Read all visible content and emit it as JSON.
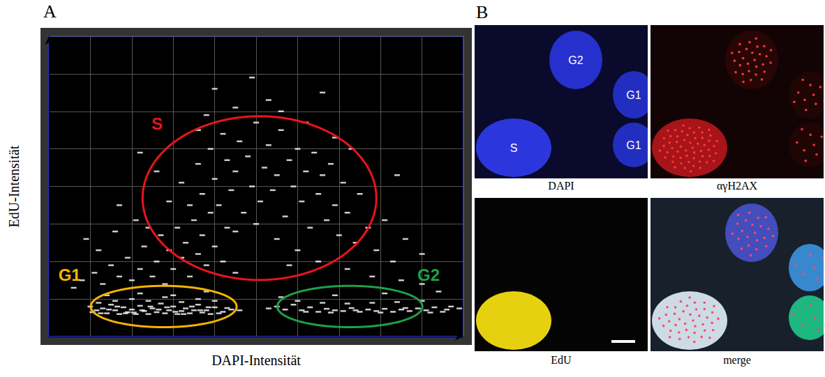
{
  "chart_data": {
    "type": "scatter",
    "x_label": "DAPI-Intensität",
    "y_label": "EdU-Intensität",
    "xlim": [
      0,
      10
    ],
    "ylim": [
      0,
      8
    ],
    "xticks": [
      0,
      1,
      2,
      3,
      4,
      5,
      6,
      7,
      8,
      9,
      10
    ],
    "yticks": [
      0,
      1,
      2,
      3,
      4,
      5,
      6,
      7,
      8
    ],
    "grid": true,
    "tick_labels": false,
    "color": "#ffffff",
    "marker": "dash",
    "x": [
      1.0,
      1.15,
      1.3,
      1.4,
      1.5,
      1.6,
      1.7,
      1.8,
      1.9,
      2.0,
      2.1,
      2.2,
      2.3,
      2.4,
      2.5,
      2.6,
      2.7,
      2.8,
      2.9,
      3.0,
      3.1,
      3.2,
      3.3,
      3.4,
      3.5,
      3.6,
      3.7,
      3.8,
      3.9,
      4.0,
      4.2,
      4.4,
      4.6,
      1.2,
      1.6,
      2.0,
      2.4,
      2.8,
      3.2,
      3.6,
      4.0,
      1.4,
      2.2,
      3.0,
      3.8,
      1.05,
      1.25,
      1.45,
      1.65,
      1.85,
      2.05,
      2.25,
      2.45,
      2.65,
      2.85,
      3.05,
      3.25,
      3.45,
      3.65,
      3.85,
      4.1,
      4.3,
      5.3,
      5.5,
      5.7,
      5.9,
      6.1,
      6.3,
      6.5,
      6.7,
      6.9,
      7.1,
      7.3,
      7.5,
      7.7,
      7.9,
      8.1,
      8.3,
      8.5,
      8.7,
      8.9,
      9.1,
      9.3,
      9.5,
      9.7,
      9.9,
      6.0,
      6.6,
      7.2,
      7.8,
      8.4,
      9.0,
      5.6,
      6.9,
      8.1,
      9.4,
      6.2,
      6.8,
      7.4,
      8.0,
      8.6,
      9.2,
      9.6,
      0.8,
      1.1,
      1.3,
      1.5,
      1.7,
      1.9,
      2.0,
      2.2,
      2.3,
      2.5,
      2.6,
      2.7,
      2.8,
      2.9,
      3.0,
      3.1,
      3.2,
      3.3,
      3.4,
      3.5,
      3.6,
      3.7,
      3.8,
      3.9,
      4.0,
      4.2,
      4.3,
      4.5,
      0.9,
      1.2,
      1.6,
      2.1,
      2.4,
      0.6,
      2.9,
      3.2,
      3.4,
      3.6,
      3.7,
      3.9,
      4.0,
      4.1,
      4.2,
      4.3,
      4.4,
      4.5,
      4.6,
      4.7,
      4.8,
      4.9,
      5.0,
      5.1,
      5.2,
      5.3,
      5.4,
      5.5,
      5.6,
      5.7,
      5.8,
      5.9,
      6.0,
      6.1,
      6.2,
      6.3,
      6.4,
      6.5,
      6.6,
      6.7,
      6.8,
      6.9,
      7.0,
      7.1,
      7.2,
      7.4,
      7.5,
      7.7,
      7.9,
      8.1,
      8.3,
      8.6,
      5.0,
      5.5,
      6.0,
      4.5,
      6.5,
      7.2,
      7.8,
      8.5,
      9.0,
      5.8,
      3.8,
      4.5,
      5.3,
      6.2,
      6.9,
      4.0,
      5.6,
      6.6,
      4.9,
      3.6,
      7.3,
      2.6,
      1.7,
      2.2,
      8.4,
      9.0
    ],
    "values": [
      0.8,
      0.7,
      0.75,
      0.62,
      0.85,
      0.7,
      0.6,
      0.78,
      0.65,
      0.72,
      0.6,
      0.82,
      0.68,
      0.6,
      0.75,
      0.65,
      0.88,
      0.62,
      0.7,
      0.8,
      0.6,
      0.68,
      0.75,
      0.62,
      0.7,
      0.85,
      0.64,
      0.7,
      0.6,
      0.78,
      0.66,
      0.72,
      0.7,
      0.9,
      0.95,
      1.0,
      0.95,
      1.05,
      0.92,
      1.0,
      0.95,
      1.1,
      1.15,
      1.1,
      1.2,
      0.65,
      0.62,
      0.72,
      0.8,
      0.62,
      0.64,
      0.7,
      0.8,
      0.72,
      0.78,
      0.66,
      0.6,
      0.8,
      0.7,
      0.78,
      0.62,
      0.76,
      0.75,
      0.8,
      0.72,
      0.85,
      0.7,
      0.78,
      0.66,
      0.74,
      0.7,
      0.68,
      0.76,
      0.66,
      0.72,
      0.68,
      0.74,
      0.66,
      0.72,
      0.68,
      0.75,
      0.7,
      0.78,
      0.66,
      0.8,
      0.75,
      0.95,
      0.9,
      0.88,
      0.9,
      0.92,
      0.95,
      1.05,
      1.1,
      1.15,
      1.2,
      0.66,
      0.64,
      0.7,
      0.64,
      0.76,
      0.64,
      0.72,
      1.5,
      1.7,
      1.4,
      1.9,
      1.6,
      2.1,
      1.5,
      1.8,
      2.4,
      1.6,
      2.0,
      2.7,
      1.4,
      2.3,
      1.8,
      2.9,
      2.1,
      2.5,
      1.6,
      3.1,
      2.2,
      2.7,
      1.9,
      3.3,
      2.4,
      2.0,
      2.9,
      1.7,
      2.6,
      2.3,
      2.8,
      3.1,
      2.9,
      1.3,
      3.6,
      4.1,
      3.5,
      4.6,
      3.8,
      5.0,
      4.2,
      3.5,
      5.4,
      4.7,
      3.9,
      4.4,
      5.2,
      3.3,
      4.8,
      4.0,
      5.7,
      3.6,
      4.5,
      5.1,
      3.9,
      4.3,
      5.5,
      3.2,
      4.7,
      4.0,
      5.0,
      3.6,
      4.4,
      2.9,
      4.9,
      3.8,
      4.3,
      3.1,
      4.6,
      3.5,
      2.7,
      4.1,
      3.3,
      2.5,
      3.8,
      2.9,
      2.3,
      3.1,
      2.0,
      2.6,
      3.0,
      2.6,
      2.3,
      2.8,
      2.0,
      1.8,
      1.6,
      1.5,
      1.4,
      1.9,
      5.9,
      6.1,
      6.3,
      5.7,
      5.3,
      6.6,
      6.0,
      6.5,
      6.9,
      5.5,
      5.0,
      4.4,
      3.5,
      4.9,
      4.3,
      2.2
    ],
    "regions": [
      {
        "name": "S",
        "color": "#e8141c",
        "center": [
          5.08,
          3.69
        ],
        "radii": [
          2.82,
          2.18
        ],
        "label_at": [
          2.61,
          5.67
        ]
      },
      {
        "name": "G1",
        "color": "#f5b400",
        "center": [
          2.77,
          0.8
        ],
        "radii": [
          1.76,
          0.55
        ],
        "label_at": [
          0.5,
          1.64
        ]
      },
      {
        "name": "G2",
        "color": "#1ea04a",
        "center": [
          7.26,
          0.8
        ],
        "radii": [
          1.75,
          0.55
        ],
        "label_at": [
          9.16,
          1.64
        ]
      }
    ]
  },
  "panel_a": {
    "letter": "A"
  },
  "panel_b": {
    "letter": "B",
    "captions": [
      "DAPI",
      "αγH2AX",
      "EdU",
      "merge"
    ],
    "nucleus_labels": [
      "G2",
      "G1",
      "S",
      "G1"
    ]
  }
}
